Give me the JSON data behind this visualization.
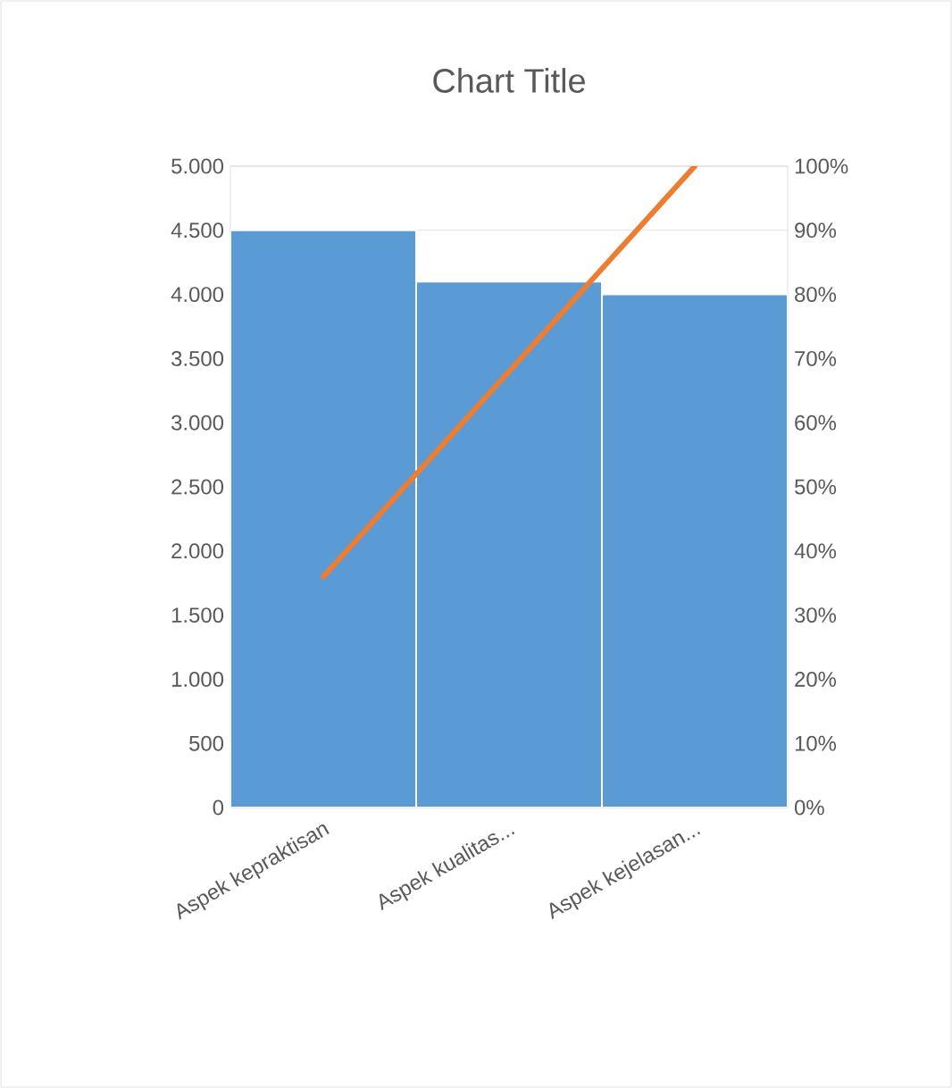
{
  "chart_data": {
    "type": "bar",
    "title": "Chart Title",
    "categories": [
      "Aspek kepraktisan",
      "Aspek kualitas...",
      "Aspek kejelasan..."
    ],
    "series": [
      {
        "color": "#5b9bd5",
        "values": [
          4500,
          4100,
          4000
        ]
      },
      {
        "type": "line",
        "axis": "y2",
        "color": "#ed7d31",
        "values": [
          36,
          68,
          100
        ]
      }
    ],
    "ylim": [
      0,
      5000
    ],
    "yticks": [
      0,
      500,
      {
        "value": 1000,
        "label": "1.000"
      },
      {
        "value": 1500,
        "label": "1.500"
      },
      {
        "value": 2000,
        "label": "2.000"
      },
      {
        "value": 2500,
        "label": "2.500"
      },
      {
        "value": 3000,
        "label": "3.000"
      },
      {
        "value": 3500,
        "label": "3.500"
      },
      {
        "value": 4000,
        "label": "4.000"
      },
      {
        "value": 4500,
        "label": "4.500"
      },
      {
        "value": 5000,
        "label": "5.000"
      }
    ],
    "y2lim": [
      0,
      100
    ],
    "y2ticks": [
      {
        "value": 0,
        "label": "0%"
      },
      {
        "value": 10,
        "label": "10%"
      },
      {
        "value": 20,
        "label": "20%"
      },
      {
        "value": 30,
        "label": "30%"
      },
      {
        "value": 40,
        "label": "40%"
      },
      {
        "value": 50,
        "label": "50%"
      },
      {
        "value": 60,
        "label": "60%"
      },
      {
        "value": 70,
        "label": "70%"
      },
      {
        "value": 80,
        "label": "80%"
      },
      {
        "value": 90,
        "label": "90%"
      },
      {
        "value": 100,
        "label": "100%"
      }
    ],
    "grid": "y",
    "marker": "none",
    "line_style": "solid"
  }
}
